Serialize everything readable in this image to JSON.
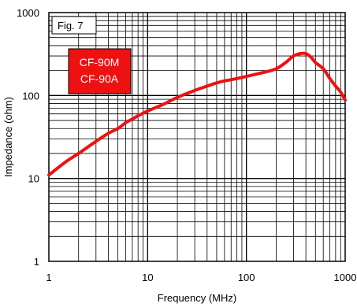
{
  "chart_data": {
    "type": "line",
    "figure_label": "Fig. 7",
    "xlabel": "Frequency (MHz)",
    "ylabel": "Impedance (ohm)",
    "xscale": "log",
    "yscale": "log",
    "xlim": [
      1,
      1000
    ],
    "ylim": [
      1,
      1000
    ],
    "x_tick_labels": [
      "1",
      "10",
      "100",
      "1000"
    ],
    "y_tick_labels": [
      "1",
      "10",
      "100",
      "1000"
    ],
    "grid": true,
    "legend_box": {
      "lines": [
        "CF-90M",
        "CF-90A"
      ],
      "placement": "top-left",
      "color": "#ee1111"
    },
    "series": [
      {
        "color": "#ee1111",
        "x": [
          1,
          1.5,
          2,
          3,
          4,
          5,
          6,
          7,
          8,
          10,
          15,
          20,
          30,
          40,
          50,
          60,
          80,
          100,
          150,
          200,
          250,
          300,
          350,
          400,
          450,
          500,
          600,
          700,
          800,
          900,
          1000
        ],
        "y": [
          11,
          16,
          20,
          28,
          35,
          40,
          47,
          52,
          57,
          65,
          80,
          95,
          115,
          130,
          142,
          150,
          160,
          170,
          190,
          210,
          250,
          300,
          320,
          320,
          290,
          250,
          210,
          160,
          130,
          110,
          88
        ]
      }
    ]
  }
}
